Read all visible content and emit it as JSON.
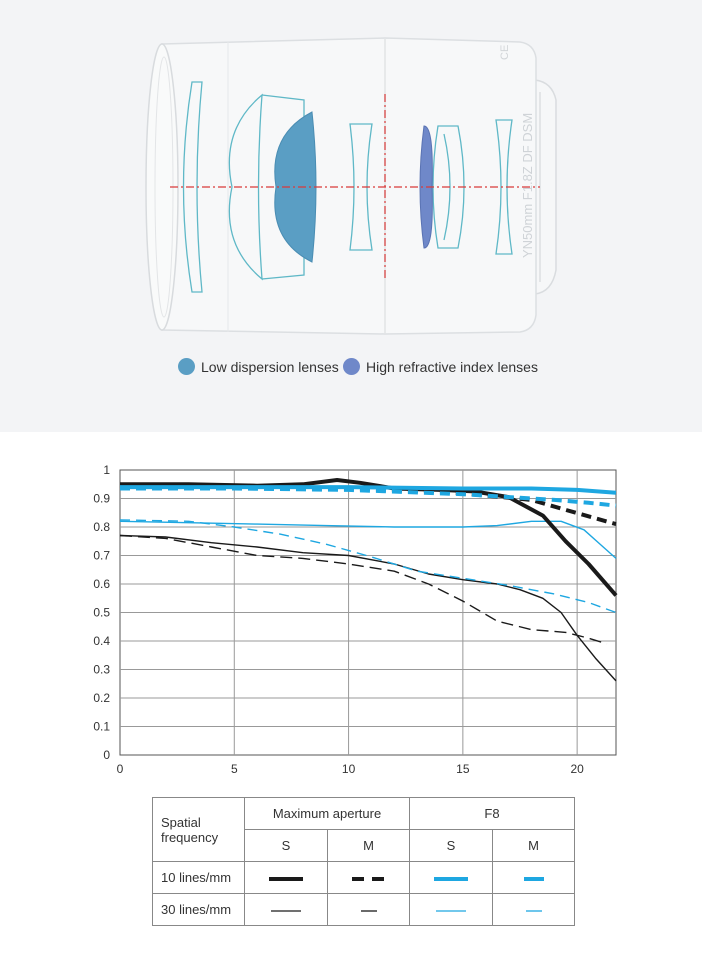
{
  "lens_section": {
    "legend": [
      {
        "label": "Low dispersion lenses",
        "color": "#5a9ec4"
      },
      {
        "label": "High refractive index lenses",
        "color": "#6f88c9"
      }
    ],
    "barrel_text": "YN50mm F1.8Z DF DSM"
  },
  "chart_data": {
    "type": "line",
    "title": "",
    "xlabel": "",
    "ylabel": "",
    "xlim": [
      0,
      21.7
    ],
    "ylim": [
      0,
      1
    ],
    "xticks": [
      0,
      5,
      10,
      15,
      20
    ],
    "yticks": [
      0,
      0.1,
      0.2,
      0.3,
      0.4,
      0.5,
      0.6,
      0.7,
      0.8,
      0.9,
      1
    ],
    "grid": true,
    "series": [
      {
        "name": "Maximum aperture S 10 lines/mm",
        "color": "#1a1a1a",
        "width": 4,
        "dash": "",
        "x": [
          0,
          3,
          6,
          8,
          9.5,
          10.5,
          12,
          14,
          15.5,
          17,
          18.5,
          19.5,
          20.5,
          21.7
        ],
        "y": [
          0.95,
          0.95,
          0.945,
          0.95,
          0.965,
          0.955,
          0.935,
          0.93,
          0.925,
          0.905,
          0.84,
          0.75,
          0.67,
          0.56
        ]
      },
      {
        "name": "Maximum aperture M 10 lines/mm",
        "color": "#1a1a1a",
        "width": 4,
        "dash": "10 6",
        "x": [
          0,
          5,
          10,
          14,
          16,
          18,
          19.5,
          21.7
        ],
        "y": [
          0.945,
          0.94,
          0.935,
          0.925,
          0.91,
          0.895,
          0.86,
          0.81
        ]
      },
      {
        "name": "F8 S 10 lines/mm",
        "color": "#1ea7e1",
        "width": 4,
        "dash": "",
        "x": [
          0,
          5,
          10,
          15,
          18,
          20,
          21.7
        ],
        "y": [
          0.94,
          0.94,
          0.94,
          0.935,
          0.935,
          0.93,
          0.92
        ]
      },
      {
        "name": "F8 M 10 lines/mm",
        "color": "#1ea7e1",
        "width": 4,
        "dash": "10 6",
        "x": [
          0,
          5,
          10,
          15,
          17,
          19,
          20.5,
          21.7
        ],
        "y": [
          0.935,
          0.935,
          0.93,
          0.915,
          0.905,
          0.895,
          0.885,
          0.875
        ]
      },
      {
        "name": "Maximum aperture S 30 lines/mm",
        "color": "#1a1a1a",
        "width": 1.4,
        "dash": "",
        "x": [
          0,
          2,
          4,
          6,
          8,
          10,
          12,
          13.5,
          15,
          16.5,
          17.5,
          18.5,
          19.3,
          20,
          20.8,
          21.7
        ],
        "y": [
          0.77,
          0.765,
          0.745,
          0.73,
          0.71,
          0.7,
          0.67,
          0.635,
          0.615,
          0.6,
          0.58,
          0.55,
          0.5,
          0.42,
          0.34,
          0.26
        ]
      },
      {
        "name": "Maximum aperture M 30 lines/mm",
        "color": "#1a1a1a",
        "width": 1.4,
        "dash": "12 6",
        "x": [
          0,
          2,
          4,
          6,
          8,
          10,
          12,
          13.5,
          15,
          16.5,
          18,
          19.5,
          20.5,
          21.3
        ],
        "y": [
          0.77,
          0.76,
          0.73,
          0.7,
          0.69,
          0.67,
          0.645,
          0.6,
          0.54,
          0.47,
          0.44,
          0.43,
          0.41,
          0.39
        ]
      },
      {
        "name": "F8 S 30 lines/mm",
        "color": "#1ea7e1",
        "width": 1.4,
        "dash": "",
        "x": [
          0,
          3,
          6,
          9,
          12,
          15,
          16.5,
          18,
          19.3,
          20.3,
          21,
          21.7
        ],
        "y": [
          0.82,
          0.815,
          0.81,
          0.805,
          0.8,
          0.8,
          0.805,
          0.82,
          0.82,
          0.79,
          0.74,
          0.69
        ]
      },
      {
        "name": "F8 M 30 lines/mm",
        "color": "#1ea7e1",
        "width": 1.4,
        "dash": "10 6",
        "x": [
          0,
          3,
          5,
          7,
          9,
          11,
          13,
          15,
          17,
          19,
          20.5,
          21.7
        ],
        "y": [
          0.825,
          0.82,
          0.8,
          0.775,
          0.74,
          0.695,
          0.645,
          0.62,
          0.595,
          0.565,
          0.535,
          0.5
        ]
      }
    ]
  },
  "legend_table": {
    "spatial_line1": "Spatial",
    "spatial_line2": "frequency",
    "max_aperture": "Maximum aperture",
    "f8": "F8",
    "s": "S",
    "m": "M",
    "row10": "10 lines/mm",
    "row30": "30 lines/mm"
  }
}
